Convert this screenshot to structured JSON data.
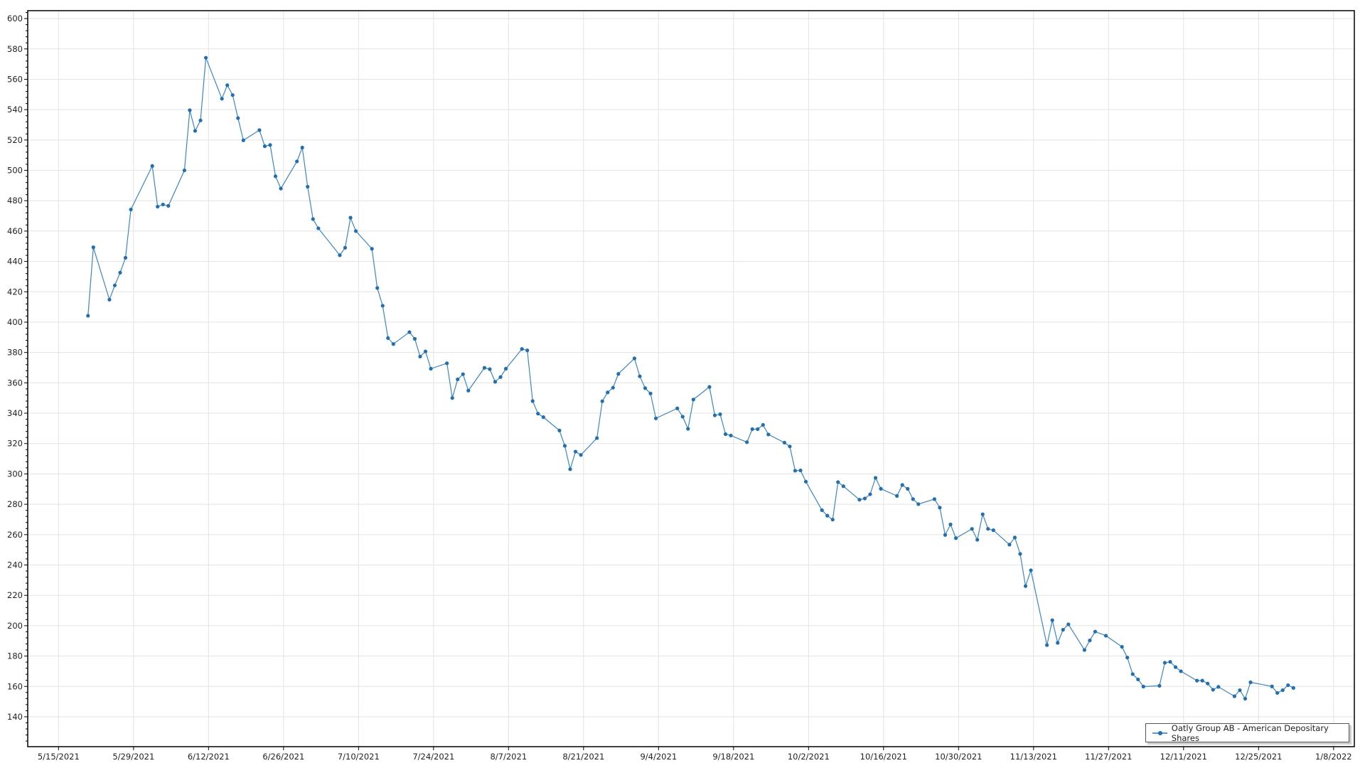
{
  "chart_data": {
    "type": "line",
    "title": "",
    "xlabel": "",
    "ylabel": "",
    "ylim": [
      120.3,
      605.2
    ],
    "xlim": [
      "2021-05-09T06:00",
      "2022-01-11T21:00"
    ],
    "grid": true,
    "legend_position": "bottom-right",
    "y_ticks": [
      140,
      160,
      180,
      200,
      220,
      240,
      260,
      280,
      300,
      320,
      340,
      360,
      380,
      400,
      420,
      440,
      460,
      480,
      500,
      520,
      540,
      560,
      580,
      600
    ],
    "x_ticks": [
      "5/15/2021",
      "5/29/2021",
      "6/12/2021",
      "6/26/2021",
      "7/10/2021",
      "7/24/2021",
      "8/7/2021",
      "8/21/2021",
      "9/4/2021",
      "9/18/2021",
      "10/2/2021",
      "10/16/2021",
      "10/30/2021",
      "11/13/2021",
      "11/27/2021",
      "12/11/2021",
      "12/25/2021",
      "1/8/2022"
    ],
    "x_tick_dates": [
      "2021-05-15",
      "2021-05-29",
      "2021-06-12",
      "2021-06-26",
      "2021-07-10",
      "2021-07-24",
      "2021-08-07",
      "2021-08-21",
      "2021-09-04",
      "2021-09-18",
      "2021-10-02",
      "2021-10-16",
      "2021-10-30",
      "2021-11-13",
      "2021-11-27",
      "2021-12-11",
      "2021-12-25",
      "2022-01-08"
    ],
    "series": [
      {
        "name": "Oatly Group AB - American Depositary Shares",
        "color": "#1f6fb2",
        "x": [
          "2021-05-20",
          "2021-05-21",
          "2021-05-24",
          "2021-05-25",
          "2021-05-26",
          "2021-05-27",
          "2021-05-28",
          "2021-06-01",
          "2021-06-02",
          "2021-06-03",
          "2021-06-04",
          "2021-06-07",
          "2021-06-08",
          "2021-06-09",
          "2021-06-10",
          "2021-06-11",
          "2021-06-14",
          "2021-06-15",
          "2021-06-16",
          "2021-06-17",
          "2021-06-18",
          "2021-06-21",
          "2021-06-22",
          "2021-06-23",
          "2021-06-24",
          "2021-06-25",
          "2021-06-28",
          "2021-06-29",
          "2021-06-30",
          "2021-07-01",
          "2021-07-02",
          "2021-07-06",
          "2021-07-07",
          "2021-07-08",
          "2021-07-09",
          "2021-07-12",
          "2021-07-13",
          "2021-07-14",
          "2021-07-15",
          "2021-07-16",
          "2021-07-19",
          "2021-07-20",
          "2021-07-21",
          "2021-07-22",
          "2021-07-23",
          "2021-07-26",
          "2021-07-27",
          "2021-07-28",
          "2021-07-29",
          "2021-07-30",
          "2021-08-02",
          "2021-08-03",
          "2021-08-04",
          "2021-08-05",
          "2021-08-06",
          "2021-08-09",
          "2021-08-10",
          "2021-08-11",
          "2021-08-12",
          "2021-08-13",
          "2021-08-16",
          "2021-08-17",
          "2021-08-18",
          "2021-08-19",
          "2021-08-20",
          "2021-08-23",
          "2021-08-24",
          "2021-08-25",
          "2021-08-26",
          "2021-08-27",
          "2021-08-30",
          "2021-08-31",
          "2021-09-01",
          "2021-09-02",
          "2021-09-03",
          "2021-09-07",
          "2021-09-08",
          "2021-09-09",
          "2021-09-10",
          "2021-09-13",
          "2021-09-14",
          "2021-09-15",
          "2021-09-16",
          "2021-09-17",
          "2021-09-20",
          "2021-09-21",
          "2021-09-22",
          "2021-09-23",
          "2021-09-24",
          "2021-09-27",
          "2021-09-28",
          "2021-09-29",
          "2021-09-30",
          "2021-10-01",
          "2021-10-04",
          "2021-10-05",
          "2021-10-06",
          "2021-10-07",
          "2021-10-08",
          "2021-10-11",
          "2021-10-12",
          "2021-10-13",
          "2021-10-14",
          "2021-10-15",
          "2021-10-18",
          "2021-10-19",
          "2021-10-20",
          "2021-10-21",
          "2021-10-22",
          "2021-10-25",
          "2021-10-26",
          "2021-10-27",
          "2021-10-28",
          "2021-10-29",
          "2021-11-01",
          "2021-11-02",
          "2021-11-03",
          "2021-11-04",
          "2021-11-05",
          "2021-11-08",
          "2021-11-09",
          "2021-11-10",
          "2021-11-11",
          "2021-11-12",
          "2021-11-15",
          "2021-11-16",
          "2021-11-17",
          "2021-11-18",
          "2021-11-19",
          "2021-11-22",
          "2021-11-23",
          "2021-11-24",
          "2021-11-26",
          "2021-11-29",
          "2021-11-30",
          "2021-12-01",
          "2021-12-02",
          "2021-12-03",
          "2021-12-06",
          "2021-12-07",
          "2021-12-08",
          "2021-12-09",
          "2021-12-10",
          "2021-12-13",
          "2021-12-14",
          "2021-12-15",
          "2021-12-16",
          "2021-12-17",
          "2021-12-20",
          "2021-12-21",
          "2021-12-22",
          "2021-12-23",
          "2021-12-27",
          "2021-12-28",
          "2021-12-29",
          "2021-12-30",
          "2021-12-31"
        ],
        "values": [
          404.2,
          449.3,
          414.8,
          424.2,
          432.6,
          442.4,
          474.2,
          502.9,
          476.1,
          477.5,
          476.6,
          500.0,
          539.6,
          526.0,
          532.9,
          574.2,
          547.2,
          556.1,
          549.6,
          534.4,
          519.8,
          526.5,
          515.9,
          516.7,
          496.1,
          488.0,
          505.9,
          515.0,
          489.2,
          467.9,
          461.8,
          444.1,
          449.0,
          468.8,
          460.0,
          448.3,
          422.5,
          410.8,
          389.5,
          385.6,
          393.4,
          389.0,
          377.3,
          380.7,
          369.3,
          372.9,
          350.0,
          362.3,
          365.7,
          354.9,
          369.9,
          369.0,
          360.7,
          363.8,
          369.3,
          382.3,
          381.4,
          348.0,
          339.7,
          337.4,
          328.6,
          318.5,
          303.1,
          314.7,
          312.5,
          323.6,
          347.9,
          353.7,
          356.8,
          365.9,
          376.1,
          364.3,
          356.5,
          353.0,
          336.6,
          343.2,
          337.7,
          329.7,
          349.0,
          357.3,
          338.6,
          339.3,
          326.2,
          325.3,
          320.9,
          329.5,
          329.5,
          332.3,
          326.0,
          320.6,
          318.1,
          302.1,
          302.3,
          294.9,
          276.1,
          272.5,
          269.9,
          294.6,
          291.9,
          283.0,
          283.8,
          286.6,
          297.4,
          290.2,
          285.5,
          292.7,
          290.2,
          283.4,
          280.1,
          283.4,
          277.8,
          259.8,
          266.7,
          257.7,
          263.8,
          256.6,
          273.4,
          263.8,
          262.9,
          253.4,
          258.1,
          247.3,
          226.1,
          236.5,
          187.2,
          203.6,
          188.7,
          197.3,
          200.9,
          184.0,
          190.3,
          196.1,
          193.4,
          186.1,
          179.0,
          168.1,
          164.6,
          159.9,
          160.4,
          175.6,
          176.2,
          172.7,
          170.0,
          163.8,
          163.8,
          161.9,
          157.8,
          159.7,
          153.5,
          157.5,
          151.9,
          162.7,
          160.0,
          155.7,
          157.5,
          160.8,
          159.0
        ]
      }
    ]
  }
}
